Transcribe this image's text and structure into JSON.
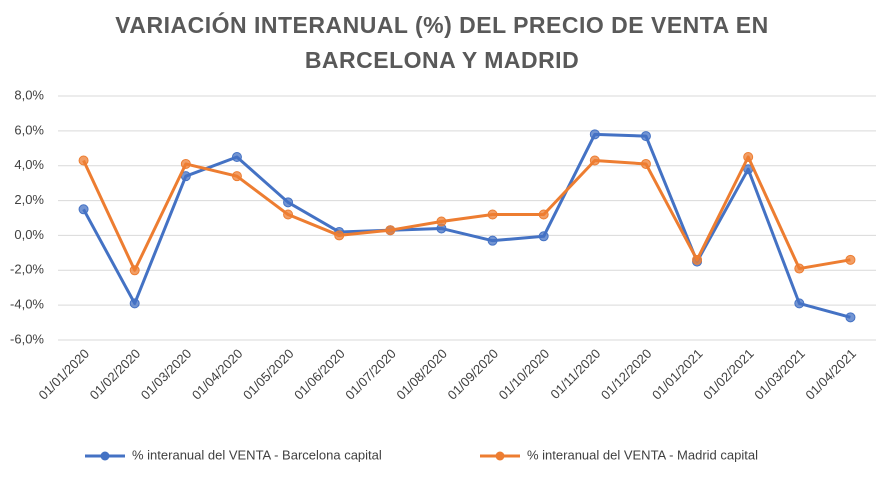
{
  "chart_data": {
    "type": "line",
    "title": "VARIACIÓN INTERANUAL (%) DEL PRECIO DE VENTA EN BARCELONA Y MADRID",
    "categories": [
      "01/01/2020",
      "01/02/2020",
      "01/03/2020",
      "01/04/2020",
      "01/05/2020",
      "01/06/2020",
      "01/07/2020",
      "01/08/2020",
      "01/09/2020",
      "01/10/2020",
      "01/11/2020",
      "01/12/2020",
      "01/01/2021",
      "01/02/2021",
      "01/03/2021",
      "01/04/2021"
    ],
    "series": [
      {
        "name": "% interanual del VENTA - Barcelona capital",
        "color": "#4472c4",
        "values": [
          1.5,
          -3.9,
          3.4,
          4.5,
          1.9,
          0.2,
          0.3,
          0.4,
          -0.3,
          -0.05,
          5.8,
          5.7,
          -1.5,
          3.8,
          -3.9,
          -4.7
        ]
      },
      {
        "name": "% interanual del VENTA - Madrid capital",
        "color": "#ed7d31",
        "values": [
          4.3,
          -2.0,
          4.1,
          3.4,
          1.2,
          0.0,
          0.3,
          0.8,
          1.2,
          1.2,
          4.3,
          4.1,
          -1.4,
          4.5,
          -1.9,
          -1.4
        ]
      }
    ],
    "ylim": [
      -6,
      8
    ],
    "yticks": [
      {
        "value": -6,
        "label": "-6,0%"
      },
      {
        "value": -4,
        "label": "-4,0%"
      },
      {
        "value": -2,
        "label": "-2,0%"
      },
      {
        "value": 0,
        "label": "0,0%"
      },
      {
        "value": 2,
        "label": "2,0%"
      },
      {
        "value": 4,
        "label": "4,0%"
      },
      {
        "value": 6,
        "label": "6,0%"
      },
      {
        "value": 8,
        "label": "8,0%"
      }
    ],
    "grid": true,
    "legend": "bottom"
  }
}
